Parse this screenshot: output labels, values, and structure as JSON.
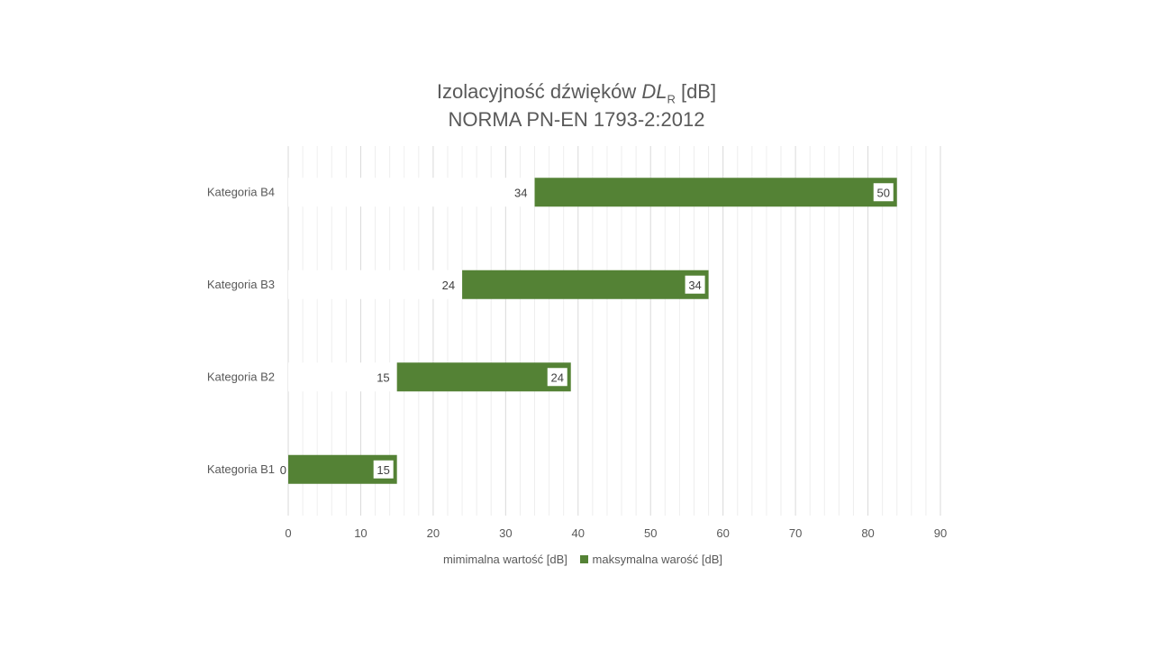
{
  "chart_data": {
    "type": "bar",
    "orientation": "horizontal",
    "stacked": true,
    "title_main": "Izolacyjność dźwięków ",
    "title_symbol": "DL",
    "title_subscript": "R",
    "title_unit": " [dB]",
    "subtitle": "NORMA PN-EN 1793-2:2012",
    "categories": [
      "Kategoria B4",
      "Kategoria B3",
      "Kategoria B2",
      "Kategoria B1"
    ],
    "series": [
      {
        "name": "mimimalna wartość [dB]",
        "values": [
          34,
          24,
          15,
          0
        ],
        "labels": [
          "34",
          "24",
          "15",
          "0"
        ],
        "color": "#ffffff"
      },
      {
        "name": "maksymalna warość [dB]",
        "values": [
          50,
          34,
          24,
          15
        ],
        "labels": [
          "50",
          "34",
          "24",
          "15"
        ],
        "color": "#548235"
      }
    ],
    "xlim": [
      0,
      90
    ],
    "xticks": [
      "0",
      "10",
      "20",
      "30",
      "40",
      "50",
      "60",
      "70",
      "80",
      "90"
    ],
    "grid": true,
    "legend_position": "bottom"
  }
}
